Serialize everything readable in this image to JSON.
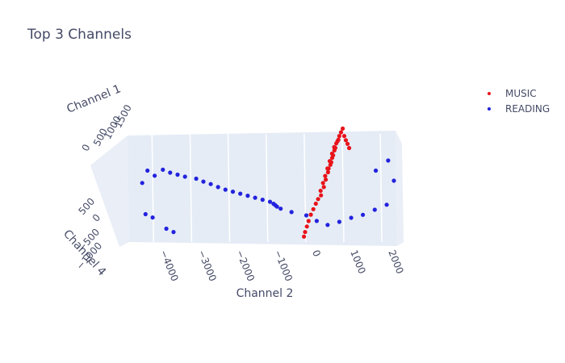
{
  "chart_data": {
    "type": "scatter",
    "dimensions": 3,
    "title": "Top 3 Channels",
    "axes": {
      "x": {
        "label": "Channel 2",
        "ticks": [
          "−4000",
          "−3000",
          "−2000",
          "−1000",
          "0",
          "1000",
          "2000"
        ]
      },
      "y": {
        "label": "Channel 4",
        "ticks": [
          "−1000",
          "−500",
          "0",
          "500"
        ]
      },
      "z": {
        "label": "Channel 1",
        "ticks": [
          "0",
          "500",
          "1000",
          "1500"
        ]
      }
    },
    "legend_position": "top-right",
    "series": [
      {
        "name": "MUSIC",
        "color": "#e8131a",
        "points": [
          [
            300,
            100,
            600
          ],
          [
            350,
            150,
            700
          ],
          [
            400,
            180,
            800
          ],
          [
            450,
            220,
            900
          ],
          [
            500,
            260,
            1000
          ],
          [
            550,
            300,
            1100
          ],
          [
            600,
            320,
            1200
          ],
          [
            320,
            60,
            550
          ],
          [
            380,
            120,
            650
          ],
          [
            420,
            160,
            750
          ],
          [
            470,
            200,
            850
          ],
          [
            520,
            240,
            950
          ],
          [
            560,
            270,
            1050
          ],
          [
            610,
            310,
            1150
          ],
          [
            650,
            340,
            1250
          ],
          [
            700,
            360,
            1300
          ],
          [
            250,
            40,
            500
          ],
          [
            200,
            0,
            450
          ],
          [
            150,
            -60,
            400
          ],
          [
            100,
            -120,
            350
          ],
          [
            60,
            -200,
            300
          ],
          [
            30,
            -260,
            250
          ],
          [
            0,
            -320,
            200
          ],
          [
            -20,
            -360,
            150
          ],
          [
            480,
            220,
            900
          ],
          [
            540,
            260,
            980
          ],
          [
            580,
            290,
            1080
          ],
          [
            630,
            330,
            1180
          ],
          [
            680,
            350,
            1280
          ],
          [
            720,
            380,
            1350
          ],
          [
            760,
            400,
            1400
          ],
          [
            800,
            420,
            1450
          ],
          [
            850,
            380,
            1350
          ],
          [
            900,
            350,
            1300
          ],
          [
            950,
            330,
            1250
          ],
          [
            1000,
            300,
            1200
          ]
        ]
      },
      {
        "name": "READING",
        "color": "#2222dd",
        "points": [
          [
            -4300,
            300,
            800
          ],
          [
            -4100,
            250,
            750
          ],
          [
            -3900,
            320,
            800
          ],
          [
            -3700,
            280,
            780
          ],
          [
            -3500,
            260,
            760
          ],
          [
            -3300,
            240,
            740
          ],
          [
            -4400,
            150,
            700
          ],
          [
            -3000,
            220,
            720
          ],
          [
            -2800,
            180,
            700
          ],
          [
            -2600,
            150,
            680
          ],
          [
            -2400,
            120,
            650
          ],
          [
            -2200,
            100,
            620
          ],
          [
            -2000,
            80,
            600
          ],
          [
            -1800,
            60,
            580
          ],
          [
            -1600,
            40,
            560
          ],
          [
            -1400,
            20,
            540
          ],
          [
            -1200,
            0,
            520
          ],
          [
            -1000,
            -20,
            500
          ],
          [
            -900,
            -40,
            480
          ],
          [
            -850,
            -60,
            470
          ],
          [
            -800,
            -80,
            460
          ],
          [
            -4200,
            -300,
            500
          ],
          [
            -4000,
            -350,
            480
          ],
          [
            -3600,
            -500,
            400
          ],
          [
            -3400,
            -550,
            380
          ],
          [
            -700,
            -100,
            440
          ],
          [
            -400,
            -150,
            420
          ],
          [
            0,
            -200,
            400
          ],
          [
            300,
            -300,
            380
          ],
          [
            600,
            -350,
            350
          ],
          [
            900,
            -320,
            380
          ],
          [
            1200,
            -280,
            420
          ],
          [
            1500,
            -250,
            450
          ],
          [
            1800,
            -200,
            500
          ],
          [
            2100,
            -150,
            550
          ],
          [
            2200,
            200,
            700
          ],
          [
            2000,
            400,
            900
          ],
          [
            1700,
            300,
            800
          ]
        ]
      }
    ]
  }
}
